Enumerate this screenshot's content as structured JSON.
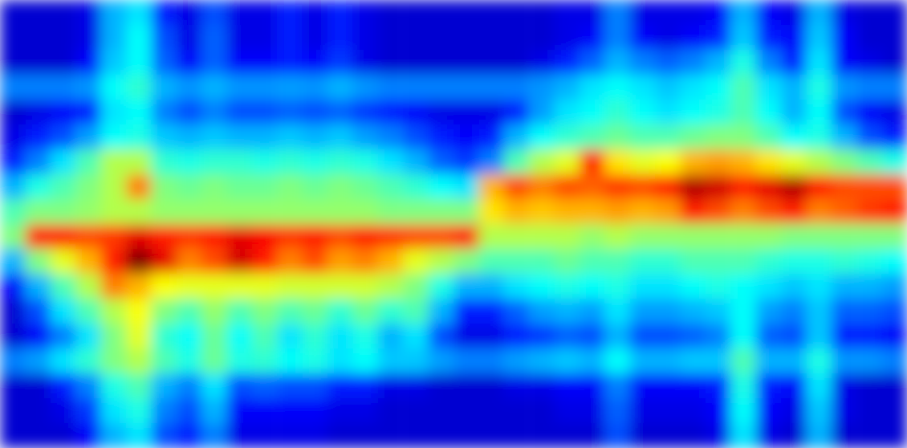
{
  "chart_data": {
    "type": "heatmap",
    "color": "jet",
    "tick_labels": false,
    "zlim": [
      0,
      1
    ],
    "cells": [
      [
        0.08,
        0.08,
        0.08,
        0.1,
        0.3,
        0.35,
        0.15,
        0.1,
        0.2,
        0.1,
        0.1,
        0.15,
        0.1,
        0.15,
        0.1,
        0.08,
        0.08,
        0.08,
        0.08,
        0.08,
        0.08,
        0.08,
        0.1,
        0.1,
        0.25,
        0.1,
        0.1,
        0.1,
        0.12,
        0.3,
        0.12,
        0.1,
        0.3,
        0.1,
        0.08,
        0.08
      ],
      [
        0.08,
        0.08,
        0.08,
        0.1,
        0.3,
        0.38,
        0.2,
        0.1,
        0.22,
        0.1,
        0.1,
        0.15,
        0.1,
        0.15,
        0.1,
        0.08,
        0.08,
        0.08,
        0.08,
        0.08,
        0.08,
        0.08,
        0.1,
        0.12,
        0.25,
        0.12,
        0.1,
        0.12,
        0.15,
        0.32,
        0.15,
        0.12,
        0.32,
        0.12,
        0.08,
        0.08
      ],
      [
        0.08,
        0.08,
        0.08,
        0.12,
        0.32,
        0.38,
        0.22,
        0.12,
        0.22,
        0.12,
        0.12,
        0.15,
        0.12,
        0.18,
        0.1,
        0.08,
        0.08,
        0.08,
        0.08,
        0.08,
        0.08,
        0.1,
        0.15,
        0.22,
        0.3,
        0.25,
        0.22,
        0.25,
        0.3,
        0.4,
        0.25,
        0.15,
        0.35,
        0.12,
        0.1,
        0.08
      ],
      [
        0.25,
        0.25,
        0.25,
        0.27,
        0.38,
        0.42,
        0.3,
        0.27,
        0.3,
        0.27,
        0.27,
        0.28,
        0.27,
        0.3,
        0.27,
        0.25,
        0.25,
        0.25,
        0.25,
        0.25,
        0.25,
        0.27,
        0.3,
        0.35,
        0.38,
        0.35,
        0.32,
        0.35,
        0.38,
        0.45,
        0.35,
        0.3,
        0.4,
        0.27,
        0.25,
        0.25
      ],
      [
        0.08,
        0.1,
        0.12,
        0.15,
        0.35,
        0.38,
        0.25,
        0.2,
        0.25,
        0.2,
        0.2,
        0.22,
        0.2,
        0.22,
        0.18,
        0.15,
        0.12,
        0.1,
        0.1,
        0.1,
        0.15,
        0.28,
        0.35,
        0.38,
        0.42,
        0.38,
        0.35,
        0.38,
        0.4,
        0.45,
        0.38,
        0.3,
        0.38,
        0.2,
        0.12,
        0.1
      ],
      [
        0.1,
        0.15,
        0.2,
        0.28,
        0.38,
        0.4,
        0.32,
        0.3,
        0.32,
        0.3,
        0.3,
        0.32,
        0.3,
        0.32,
        0.28,
        0.25,
        0.2,
        0.15,
        0.12,
        0.15,
        0.3,
        0.38,
        0.42,
        0.45,
        0.48,
        0.45,
        0.45,
        0.48,
        0.5,
        0.5,
        0.45,
        0.38,
        0.4,
        0.3,
        0.2,
        0.15
      ],
      [
        0.15,
        0.25,
        0.35,
        0.45,
        0.55,
        0.55,
        0.42,
        0.4,
        0.42,
        0.42,
        0.4,
        0.42,
        0.4,
        0.42,
        0.4,
        0.35,
        0.3,
        0.22,
        0.18,
        0.25,
        0.45,
        0.55,
        0.6,
        0.85,
        0.65,
        0.6,
        0.62,
        0.7,
        0.72,
        0.7,
        0.65,
        0.6,
        0.55,
        0.5,
        0.45,
        0.4
      ],
      [
        0.3,
        0.4,
        0.45,
        0.5,
        0.55,
        0.75,
        0.5,
        0.48,
        0.5,
        0.48,
        0.48,
        0.5,
        0.48,
        0.5,
        0.48,
        0.45,
        0.42,
        0.38,
        0.35,
        0.7,
        0.8,
        0.75,
        0.8,
        0.78,
        0.82,
        0.8,
        0.85,
        0.95,
        0.92,
        0.85,
        0.9,
        0.95,
        0.85,
        0.8,
        0.8,
        0.8
      ],
      [
        0.45,
        0.5,
        0.5,
        0.52,
        0.55,
        0.55,
        0.52,
        0.52,
        0.52,
        0.52,
        0.52,
        0.52,
        0.52,
        0.52,
        0.52,
        0.5,
        0.5,
        0.5,
        0.5,
        0.65,
        0.7,
        0.68,
        0.7,
        0.7,
        0.72,
        0.7,
        0.72,
        0.85,
        0.8,
        0.75,
        0.8,
        0.85,
        0.75,
        0.78,
        0.82,
        0.85
      ],
      [
        0.5,
        0.85,
        0.85,
        0.8,
        0.82,
        0.9,
        0.85,
        0.82,
        0.85,
        0.9,
        0.88,
        0.82,
        0.85,
        0.8,
        0.85,
        0.82,
        0.8,
        0.8,
        0.85,
        0.55,
        0.55,
        0.55,
        0.55,
        0.52,
        0.55,
        0.52,
        0.52,
        0.52,
        0.52,
        0.52,
        0.52,
        0.5,
        0.5,
        0.5,
        0.5,
        0.5
      ],
      [
        0.3,
        0.5,
        0.6,
        0.7,
        0.85,
        1,
        0.9,
        0.75,
        0.8,
        0.92,
        0.85,
        0.75,
        0.8,
        0.72,
        0.75,
        0.7,
        0.6,
        0.55,
        0.5,
        0.45,
        0.45,
        0.45,
        0.48,
        0.45,
        0.45,
        0.42,
        0.42,
        0.45,
        0.45,
        0.45,
        0.42,
        0.4,
        0.4,
        0.42,
        0.4,
        0.38
      ],
      [
        0.12,
        0.3,
        0.45,
        0.55,
        0.75,
        0.7,
        0.62,
        0.6,
        0.6,
        0.6,
        0.6,
        0.58,
        0.58,
        0.58,
        0.58,
        0.55,
        0.5,
        0.4,
        0.3,
        0.3,
        0.35,
        0.38,
        0.4,
        0.38,
        0.4,
        0.35,
        0.35,
        0.38,
        0.4,
        0.38,
        0.35,
        0.32,
        0.35,
        0.3,
        0.3,
        0.28
      ],
      [
        0.08,
        0.2,
        0.35,
        0.45,
        0.55,
        0.62,
        0.5,
        0.45,
        0.52,
        0.45,
        0.5,
        0.45,
        0.48,
        0.42,
        0.48,
        0.42,
        0.45,
        0.3,
        0.15,
        0.15,
        0.22,
        0.28,
        0.3,
        0.28,
        0.35,
        0.28,
        0.28,
        0.3,
        0.32,
        0.38,
        0.28,
        0.25,
        0.32,
        0.22,
        0.22,
        0.2
      ],
      [
        0.08,
        0.12,
        0.25,
        0.35,
        0.5,
        0.6,
        0.42,
        0.38,
        0.48,
        0.38,
        0.45,
        0.35,
        0.42,
        0.35,
        0.4,
        0.3,
        0.35,
        0.2,
        0.1,
        0.1,
        0.15,
        0.18,
        0.22,
        0.2,
        0.3,
        0.2,
        0.2,
        0.22,
        0.25,
        0.38,
        0.22,
        0.2,
        0.32,
        0.15,
        0.15,
        0.12
      ],
      [
        0.25,
        0.28,
        0.35,
        0.42,
        0.5,
        0.55,
        0.45,
        0.4,
        0.48,
        0.4,
        0.42,
        0.38,
        0.4,
        0.35,
        0.38,
        0.32,
        0.32,
        0.28,
        0.25,
        0.25,
        0.28,
        0.3,
        0.32,
        0.3,
        0.38,
        0.3,
        0.3,
        0.32,
        0.32,
        0.45,
        0.3,
        0.3,
        0.4,
        0.27,
        0.27,
        0.25
      ],
      [
        0.08,
        0.08,
        0.15,
        0.25,
        0.4,
        0.45,
        0.3,
        0.25,
        0.35,
        0.2,
        0.22,
        0.2,
        0.2,
        0.15,
        0.15,
        0.1,
        0.1,
        0.08,
        0.08,
        0.08,
        0.1,
        0.1,
        0.12,
        0.12,
        0.25,
        0.12,
        0.12,
        0.12,
        0.15,
        0.4,
        0.15,
        0.12,
        0.35,
        0.1,
        0.08,
        0.08
      ],
      [
        0.08,
        0.08,
        0.1,
        0.18,
        0.35,
        0.4,
        0.25,
        0.2,
        0.3,
        0.12,
        0.12,
        0.12,
        0.12,
        0.1,
        0.1,
        0.08,
        0.08,
        0.08,
        0.08,
        0.08,
        0.08,
        0.08,
        0.1,
        0.1,
        0.22,
        0.1,
        0.1,
        0.1,
        0.12,
        0.38,
        0.12,
        0.1,
        0.32,
        0.1,
        0.08,
        0.08
      ],
      [
        0.08,
        0.08,
        0.08,
        0.12,
        0.3,
        0.35,
        0.2,
        0.15,
        0.25,
        0.1,
        0.1,
        0.1,
        0.1,
        0.08,
        0.08,
        0.08,
        0.08,
        0.08,
        0.08,
        0.08,
        0.08,
        0.08,
        0.08,
        0.08,
        0.2,
        0.08,
        0.08,
        0.08,
        0.1,
        0.35,
        0.1,
        0.08,
        0.3,
        0.08,
        0.08,
        0.08
      ]
    ]
  }
}
